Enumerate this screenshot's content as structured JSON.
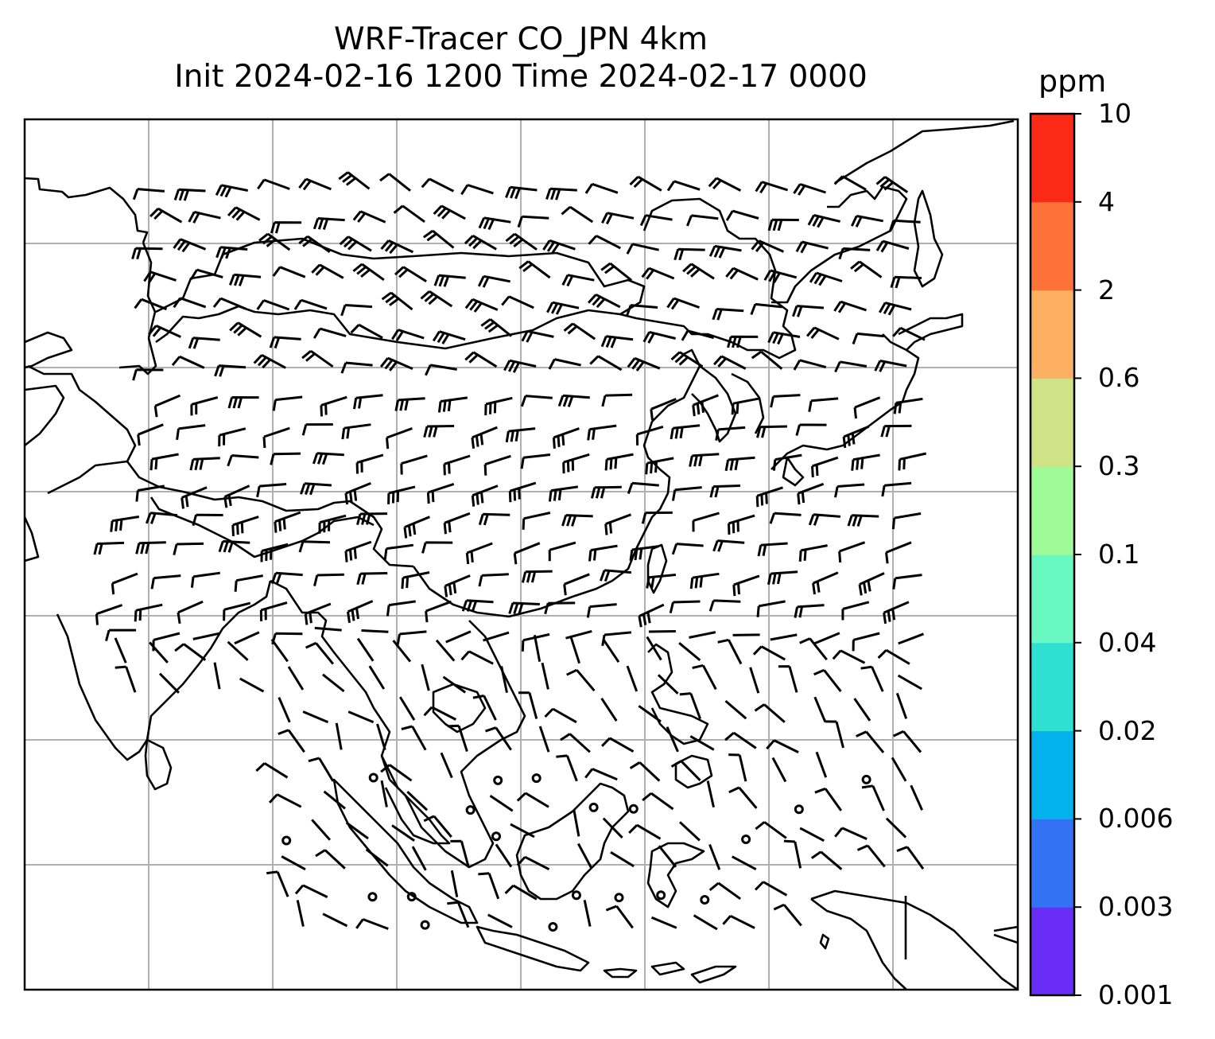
{
  "title": {
    "line1": "WRF-Tracer CO_JPN 4km",
    "line2": "Init 2024-02-16 1200 Time 2024-02-17 0000"
  },
  "map": {
    "projection": "lat-lon",
    "gridlines": true,
    "coastlines": true,
    "overlay": "wind barbs"
  },
  "colorbar": {
    "unit": "ppm",
    "levels": [
      "0.001",
      "0.003",
      "0.006",
      "0.02",
      "0.04",
      "0.1",
      "0.3",
      "0.6",
      "2",
      "4",
      "10"
    ],
    "colors": [
      "#6a2cf7",
      "#3372f2",
      "#03b2ea",
      "#2fe0d2",
      "#67f9c1",
      "#9ffb98",
      "#cfe286",
      "#fdb062",
      "#fd7239",
      "#fb2a16"
    ]
  }
}
